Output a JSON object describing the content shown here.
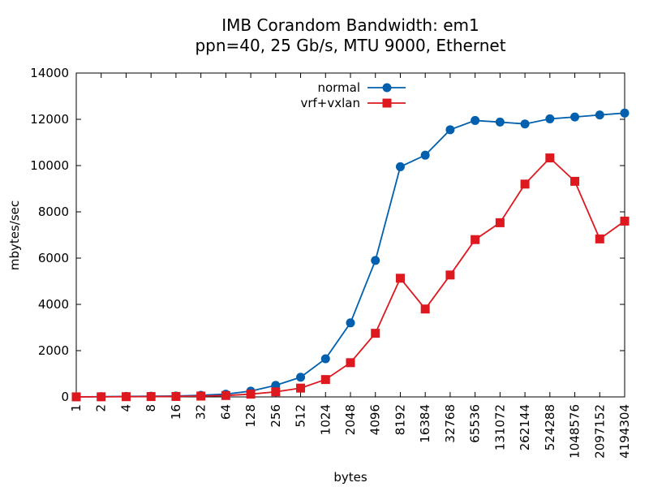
{
  "chart_data": {
    "type": "line",
    "title": [
      "IMB Corandom Bandwidth: em1",
      "ppn=40, 25 Gb/s, MTU 9000, Ethernet"
    ],
    "xlabel": "bytes",
    "ylabel": "mbytes/sec",
    "categories": [
      "1",
      "2",
      "4",
      "8",
      "16",
      "32",
      "64",
      "128",
      "256",
      "512",
      "1024",
      "2048",
      "4096",
      "8192",
      "16384",
      "32768",
      "65536",
      "131072",
      "262144",
      "524288",
      "1048576",
      "2097152",
      "4194304"
    ],
    "ylim": [
      0,
      14000
    ],
    "yticks": [
      0,
      2000,
      4000,
      6000,
      8000,
      10000,
      12000,
      14000
    ],
    "legend_position": "top-center",
    "series": [
      {
        "name": "normal",
        "color": "#0060ad",
        "marker": "circle",
        "values": [
          5,
          10,
          20,
          30,
          40,
          70,
          120,
          250,
          500,
          850,
          1650,
          3200,
          5900,
          9950,
          10450,
          11550,
          11950,
          11880,
          11800,
          12020,
          12100,
          12190,
          12270
        ]
      },
      {
        "name": "vrf+vxlan",
        "color": "#dd181f",
        "marker": "square",
        "values": [
          3,
          5,
          10,
          15,
          20,
          35,
          60,
          120,
          220,
          380,
          750,
          1480,
          2750,
          5130,
          3800,
          5270,
          6800,
          7530,
          9200,
          10330,
          9320,
          6830,
          7600
        ]
      }
    ]
  }
}
